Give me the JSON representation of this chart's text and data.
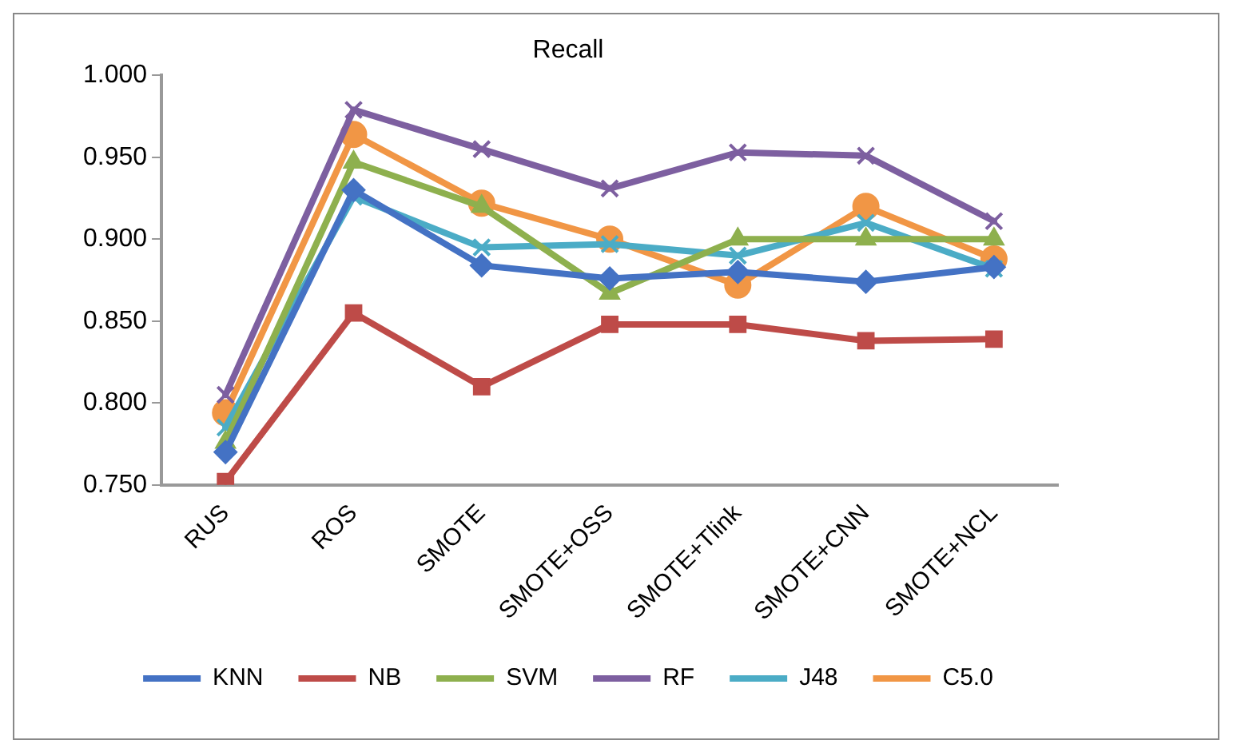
{
  "chart_data": {
    "type": "line",
    "title": "Recall",
    "categories": [
      "RUS",
      "ROS",
      "SMOTE",
      "SMOTE+OSS",
      "SMOTE+Tlink",
      "SMOTE+CNN",
      "SMOTE+NCL"
    ],
    "ylim": [
      0.75,
      1.0
    ],
    "yticks": [
      {
        "value": 0.75,
        "label": "0.750"
      },
      {
        "value": 0.8,
        "label": "0.800"
      },
      {
        "value": 0.85,
        "label": "0.850"
      },
      {
        "value": 0.9,
        "label": "0.900"
      },
      {
        "value": 0.95,
        "label": "0.950"
      },
      {
        "value": 1.0,
        "label": "1.000"
      }
    ],
    "grid": false,
    "legend": "bottom",
    "line_style": "solid",
    "series": [
      {
        "name": "KNN",
        "color": "#4472c4",
        "marker": "diamond",
        "values": [
          0.77,
          0.93,
          0.884,
          0.876,
          0.88,
          0.874,
          0.883
        ]
      },
      {
        "name": "NB",
        "color": "#be4b48",
        "marker": "square",
        "values": [
          0.752,
          0.855,
          0.81,
          0.848,
          0.848,
          0.838,
          0.839
        ]
      },
      {
        "name": "SVM",
        "color": "#8eb04e",
        "marker": "triangle",
        "values": [
          0.776,
          0.947,
          0.92,
          0.867,
          0.9,
          0.9,
          0.9
        ]
      },
      {
        "name": "RF",
        "color": "#7d5fa0",
        "marker": "cross",
        "values": [
          0.805,
          0.979,
          0.955,
          0.931,
          0.953,
          0.951,
          0.911
        ]
      },
      {
        "name": "J48",
        "color": "#4bacc6",
        "marker": "cross",
        "values": [
          0.785,
          0.926,
          0.895,
          0.897,
          0.89,
          0.91,
          0.882
        ]
      },
      {
        "name": "C5.0",
        "color": "#f19645",
        "marker": "circle",
        "values": [
          0.794,
          0.964,
          0.922,
          0.9,
          0.872,
          0.92,
          0.888
        ]
      }
    ]
  }
}
